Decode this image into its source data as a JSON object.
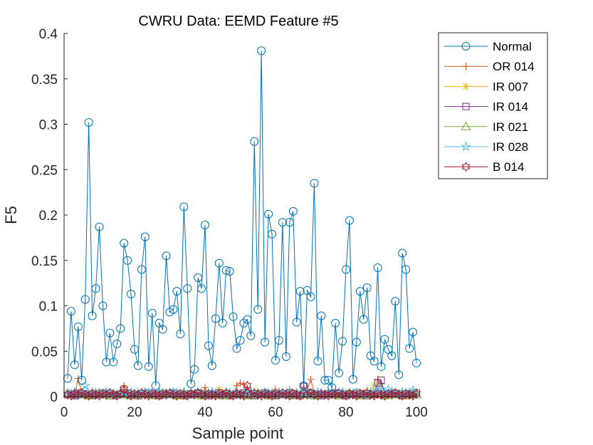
{
  "chart_data": {
    "type": "line",
    "title": "CWRU Data: EEMD Feature #5",
    "xlabel": "Sample point",
    "ylabel": "F5",
    "xlim": [
      0,
      100
    ],
    "ylim": [
      0,
      0.4
    ],
    "xticks": [
      "0",
      "20",
      "40",
      "60",
      "80",
      "100"
    ],
    "yticks": [
      "0",
      "0.05",
      "0.1",
      "0.15",
      "0.2",
      "0.25",
      "0.3",
      "0.35",
      "0.4"
    ],
    "grid": false,
    "legend_position": "outside-top-right",
    "series": [
      {
        "name": "Normal",
        "color": "#0072BD",
        "marker": "circle",
        "values": [
          0.02,
          0.094,
          0.035,
          0.077,
          0.018,
          0.107,
          0.302,
          0.089,
          0.119,
          0.187,
          0.1,
          0.038,
          0.07,
          0.038,
          0.058,
          0.075,
          0.169,
          0.15,
          0.113,
          0.052,
          0.034,
          0.14,
          0.176,
          0.033,
          0.092,
          0.012,
          0.081,
          0.074,
          0.155,
          0.093,
          0.096,
          0.116,
          0.069,
          0.209,
          0.119,
          0.014,
          0.03,
          0.131,
          0.119,
          0.189,
          0.056,
          0.034,
          0.086,
          0.147,
          0.081,
          0.139,
          0.138,
          0.088,
          0.053,
          0.062,
          0.081,
          0.085,
          0.067,
          0.281,
          0.096,
          0.381,
          0.06,
          0.201,
          0.179,
          0.04,
          0.062,
          0.192,
          0.044,
          0.192,
          0.204,
          0.082,
          0.116,
          0.012,
          0.117,
          0.11,
          0.235,
          0.039,
          0.089,
          0.018,
          0.018,
          0.01,
          0.081,
          0.026,
          0.061,
          0.14,
          0.194,
          0.019,
          0.06,
          0.116,
          0.085,
          0.12,
          0.045,
          0.039,
          0.142,
          0.033,
          0.063,
          0.052,
          0.045,
          0.105,
          0.024,
          0.158,
          0.14,
          0.053,
          0.071,
          0.037
        ]
      },
      {
        "name": "OR 014",
        "color": "#D95319",
        "marker": "plus",
        "values": [
          0.004,
          0.002,
          0.001,
          0.02,
          0.004,
          0.002,
          0.003,
          0.002,
          0.001,
          0.003,
          0.002,
          0.001,
          0.002,
          0.003,
          0.001,
          0.002,
          0.012,
          0.003,
          0.001,
          0.002,
          0.003,
          0.001,
          0.002,
          0.003,
          0.002,
          0.004,
          0.006,
          0.003,
          0.002,
          0.003,
          0.002,
          0.001,
          0.003,
          0.002,
          0.004,
          0.002,
          0.001,
          0.003,
          0.002,
          0.01,
          0.003,
          0.002,
          0.001,
          0.003,
          0.002,
          0.004,
          0.003,
          0.002,
          0.012,
          0.015,
          0.013,
          0.008,
          0.003,
          0.002,
          0.001,
          0.002,
          0.003,
          0.002,
          0.004,
          0.008,
          0.003,
          0.002,
          0.001,
          0.008,
          0.003,
          0.002,
          0.001,
          0.003,
          0.008,
          0.019,
          0.004,
          0.003,
          0.002,
          0.001,
          0.003,
          0.002,
          0.001,
          0.004,
          0.003,
          0.002,
          0.001,
          0.003,
          0.002,
          0.004,
          0.003,
          0.007,
          0.002,
          0.003,
          0.019,
          0.014,
          0.003,
          0.002,
          0.001,
          0.003,
          0.002,
          0.004,
          0.003,
          0.002,
          0.001,
          0.002
        ]
      },
      {
        "name": "IR 007",
        "color": "#EDB120",
        "marker": "asterisk",
        "values": [
          0.005,
          0.003,
          0.004,
          0.002,
          0.006,
          0.003,
          0.004,
          0.005,
          0.002,
          0.003,
          0.004,
          0.003,
          0.005,
          0.002,
          0.004,
          0.003,
          0.002,
          0.005,
          0.003,
          0.004,
          0.002,
          0.003,
          0.005,
          0.004,
          0.003,
          0.002,
          0.004,
          0.005,
          0.003,
          0.002,
          0.004,
          0.003,
          0.005,
          0.002,
          0.003,
          0.004,
          0.003,
          0.005,
          0.002,
          0.004,
          0.003,
          0.002,
          0.004,
          0.008,
          0.003,
          0.005,
          0.004,
          0.002,
          0.003,
          0.005,
          0.004,
          0.003,
          0.002,
          0.004,
          0.003,
          0.005,
          0.002,
          0.004,
          0.003,
          0.005,
          0.003,
          0.002,
          0.004,
          0.003,
          0.005,
          0.002,
          0.004,
          0.003,
          0.002,
          0.005,
          0.004,
          0.003,
          0.002,
          0.004,
          0.003,
          0.005,
          0.002,
          0.004,
          0.003,
          0.005,
          0.003,
          0.002,
          0.004,
          0.003,
          0.005,
          0.002,
          0.004,
          0.012,
          0.015,
          0.005,
          0.003,
          0.004,
          0.002,
          0.005,
          0.003,
          0.004,
          0.003,
          0.005,
          0.002,
          0.003
        ]
      },
      {
        "name": "IR 014",
        "color": "#7E2F8E",
        "marker": "square",
        "values": [
          0.002,
          0.003,
          0.001,
          0.004,
          0.002,
          0.003,
          0.002,
          0.001,
          0.003,
          0.002,
          0.004,
          0.002,
          0.003,
          0.001,
          0.002,
          0.003,
          0.002,
          0.004,
          0.003,
          0.002,
          0.001,
          0.003,
          0.002,
          0.004,
          0.002,
          0.003,
          0.001,
          0.002,
          0.003,
          0.002,
          0.004,
          0.002,
          0.003,
          0.001,
          0.002,
          0.003,
          0.002,
          0.004,
          0.003,
          0.002,
          0.001,
          0.003,
          0.002,
          0.004,
          0.002,
          0.003,
          0.001,
          0.002,
          0.003,
          0.002,
          0.004,
          0.003,
          0.002,
          0.001,
          0.003,
          0.002,
          0.004,
          0.002,
          0.003,
          0.001,
          0.002,
          0.003,
          0.002,
          0.004,
          0.003,
          0.002,
          0.001,
          0.003,
          0.002,
          0.004,
          0.002,
          0.003,
          0.001,
          0.002,
          0.003,
          0.002,
          0.004,
          0.003,
          0.002,
          0.001,
          0.003,
          0.002,
          0.004,
          0.002,
          0.003,
          0.001,
          0.002,
          0.003,
          0.015,
          0.018,
          0.003,
          0.002,
          0.004,
          0.002,
          0.003,
          0.001,
          0.002,
          0.003,
          0.002,
          0.004
        ]
      },
      {
        "name": "IR 021",
        "color": "#77AC30",
        "marker": "triangle",
        "values": [
          0.003,
          0.002,
          0.004,
          0.002,
          0.003,
          0.002,
          0.001,
          0.003,
          0.002,
          0.004,
          0.003,
          0.002,
          0.001,
          0.003,
          0.002,
          0.004,
          0.002,
          0.003,
          0.001,
          0.002,
          0.003,
          0.002,
          0.004,
          0.003,
          0.002,
          0.001,
          0.003,
          0.002,
          0.004,
          0.002,
          0.003,
          0.001,
          0.002,
          0.003,
          0.002,
          0.004,
          0.003,
          0.002,
          0.001,
          0.003,
          0.002,
          0.004,
          0.002,
          0.003,
          0.001,
          0.002,
          0.003,
          0.002,
          0.004,
          0.003,
          0.002,
          0.001,
          0.003,
          0.002,
          0.004,
          0.002,
          0.003,
          0.001,
          0.002,
          0.003,
          0.002,
          0.004,
          0.003,
          0.002,
          0.001,
          0.003,
          0.002,
          0.004,
          0.002,
          0.003,
          0.001,
          0.002,
          0.003,
          0.002,
          0.004,
          0.003,
          0.002,
          0.001,
          0.003,
          0.002,
          0.004,
          0.002,
          0.003,
          0.001,
          0.002,
          0.003,
          0.002,
          0.004,
          0.003,
          0.002,
          0.001,
          0.003,
          0.002,
          0.004,
          0.002,
          0.003,
          0.001,
          0.002,
          0.003,
          0.002
        ]
      },
      {
        "name": "IR 028",
        "color": "#4DBEEE",
        "marker": "pentagram",
        "values": [
          0.004,
          0.003,
          0.005,
          0.002,
          0.004,
          0.012,
          0.003,
          0.005,
          0.004,
          0.002,
          0.003,
          0.005,
          0.004,
          0.003,
          0.002,
          0.005,
          0.004,
          0.003,
          0.005,
          0.002,
          0.004,
          0.003,
          0.005,
          0.004,
          0.002,
          0.003,
          0.005,
          0.004,
          0.003,
          0.002,
          0.005,
          0.004,
          0.003,
          0.005,
          0.002,
          0.004,
          0.003,
          0.005,
          0.004,
          0.002,
          0.003,
          0.005,
          0.004,
          0.003,
          0.002,
          0.005,
          0.004,
          0.003,
          0.005,
          0.002,
          0.004,
          0.003,
          0.005,
          0.004,
          0.002,
          0.003,
          0.005,
          0.004,
          0.003,
          0.002,
          0.005,
          0.004,
          0.003,
          0.005,
          0.002,
          0.004,
          0.003,
          0.005,
          0.004,
          0.002,
          0.003,
          0.005,
          0.004,
          0.003,
          0.002,
          0.005,
          0.004,
          0.003,
          0.005,
          0.002,
          0.004,
          0.003,
          0.005,
          0.004,
          0.002,
          0.003,
          0.005,
          0.004,
          0.011,
          0.005,
          0.004,
          0.008,
          0.005,
          0.004,
          0.003,
          0.005,
          0.004,
          0.003,
          0.007,
          0.004
        ]
      },
      {
        "name": "B 014",
        "color": "#A2142F",
        "marker": "hexagram",
        "values": [
          0.002,
          0.001,
          0.003,
          0.002,
          0.004,
          0.002,
          0.001,
          0.003,
          0.002,
          0.001,
          0.003,
          0.002,
          0.004,
          0.002,
          0.001,
          0.003,
          0.008,
          0.002,
          0.001,
          0.003,
          0.002,
          0.004,
          0.002,
          0.001,
          0.003,
          0.002,
          0.001,
          0.003,
          0.002,
          0.004,
          0.002,
          0.001,
          0.003,
          0.002,
          0.001,
          0.003,
          0.002,
          0.004,
          0.002,
          0.001,
          0.003,
          0.002,
          0.001,
          0.003,
          0.002,
          0.004,
          0.002,
          0.001,
          0.003,
          0.002,
          0.001,
          0.012,
          0.002,
          0.004,
          0.002,
          0.001,
          0.003,
          0.002,
          0.001,
          0.003,
          0.002,
          0.004,
          0.002,
          0.001,
          0.003,
          0.002,
          0.001,
          0.012,
          0.002,
          0.004,
          0.002,
          0.001,
          0.003,
          0.002,
          0.001,
          0.003,
          0.002,
          0.004,
          0.002,
          0.001,
          0.003,
          0.002,
          0.001,
          0.003,
          0.002,
          0.004,
          0.002,
          0.001,
          0.003,
          0.002,
          0.001,
          0.003,
          0.002,
          0.004,
          0.002,
          0.001,
          0.003,
          0.002,
          0.001,
          0.003
        ]
      }
    ]
  }
}
